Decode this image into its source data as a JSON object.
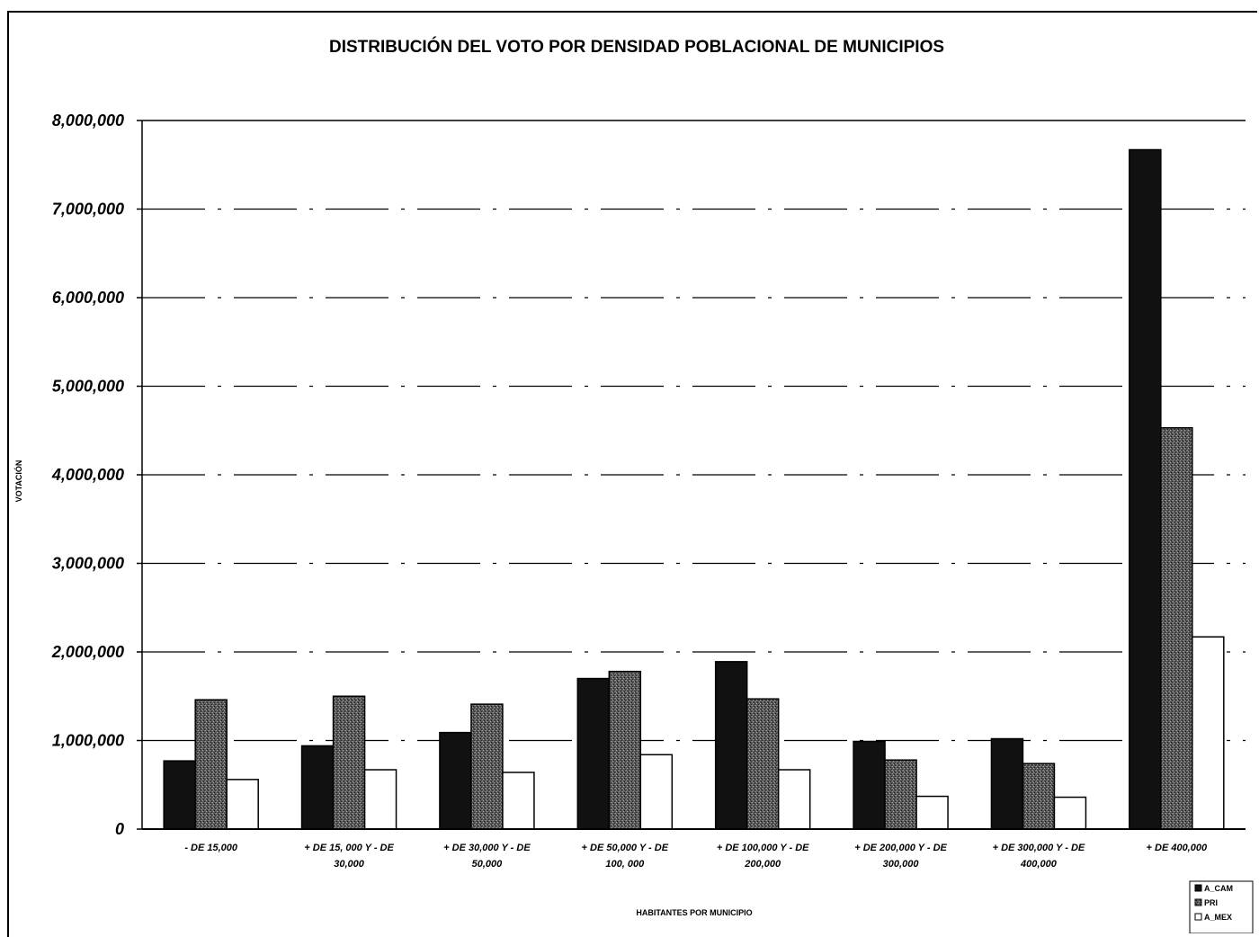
{
  "chart_data": {
    "type": "bar",
    "title": "DISTRIBUCIÓN DEL VOTO POR DENSIDAD POBLACIONAL DE MUNICIPIOS",
    "xlabel": "HABITANTES POR MUNICIPIO",
    "ylabel": "VOTACIÓN",
    "ylim": [
      0,
      8000000
    ],
    "yticks": [
      "0",
      "1,000,000",
      "2,000,000",
      "3,000,000",
      "4,000,000",
      "5,000,000",
      "6,000,000",
      "7,000,000",
      "8,000,000"
    ],
    "grid": true,
    "legend_position": "bottom-right",
    "categories": [
      [
        "- DE 15,000"
      ],
      [
        "+ DE 15, 000 Y - DE",
        "30,000"
      ],
      [
        "+ DE 30,000 Y - DE",
        "50,000"
      ],
      [
        "+ DE 50,000 Y - DE",
        "100, 000"
      ],
      [
        "+ DE 100,000 Y - DE",
        "200,000"
      ],
      [
        "+ DE 200,000 Y - DE",
        "300,000"
      ],
      [
        "+ DE 300,000 Y - DE",
        "400,000"
      ],
      [
        "+ DE 400,000"
      ]
    ],
    "series": [
      {
        "name": "A_CAM",
        "color": "#111111",
        "values": [
          770000,
          940000,
          1090000,
          1700000,
          1890000,
          990000,
          1020000,
          7670000
        ]
      },
      {
        "name": "PRI",
        "color": "#3d3d3d",
        "values": [
          1460000,
          1500000,
          1410000,
          1780000,
          1470000,
          780000,
          740000,
          4530000
        ]
      },
      {
        "name": "A_MEX",
        "color": "#ffffff",
        "values": [
          560000,
          670000,
          640000,
          840000,
          670000,
          370000,
          360000,
          2170000
        ]
      }
    ]
  }
}
